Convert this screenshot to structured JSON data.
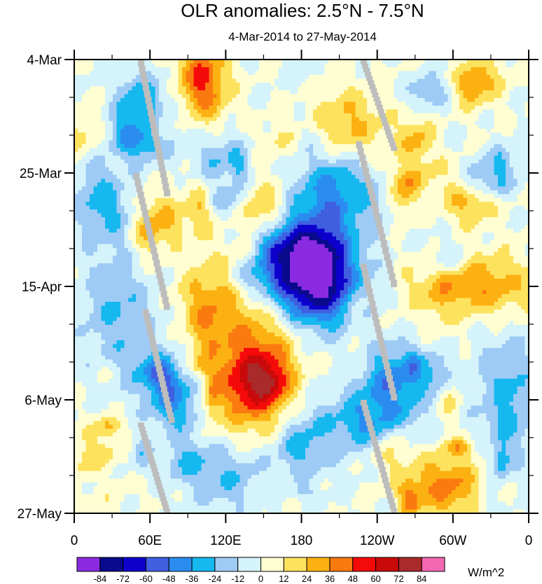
{
  "chart_data": {
    "type": "heatmap",
    "title": "OLR anomalies: 2.5°N - 7.5°N",
    "subtitle": "4-Mar-2014 to 27-May-2014",
    "x_axis": {
      "tick_labels": [
        "0",
        "60E",
        "120E",
        "180",
        "120W",
        "60W",
        "0"
      ],
      "range": [
        "0",
        "0"
      ]
    },
    "y_axis": {
      "tick_labels": [
        "4-Mar",
        "25-Mar",
        "15-Apr",
        "6-May",
        "27-May"
      ],
      "range": [
        "4-Mar-2014",
        "27-May-2014"
      ]
    },
    "colorbar": {
      "unit_label": "W/m^2",
      "levels": [
        -84,
        -72,
        -60,
        -48,
        -36,
        -24,
        -12,
        0,
        12,
        24,
        36,
        48,
        60,
        72,
        84
      ],
      "colors": [
        "#8a2be2",
        "#0a0a8c",
        "#0d00cc",
        "#3f5fe0",
        "#2b8cf0",
        "#16b8f0",
        "#9ecbf5",
        "#d5f3fa",
        "#fffed2",
        "#fde25e",
        "#fcb112",
        "#fa7a10",
        "#f50a0a",
        "#c80a0a",
        "#a82a2a",
        "#f468b3"
      ]
    },
    "missing_color": "#bdbdbd",
    "features": [
      "Enhanced convection (negative anomalies, blue/purple) centred near 150E-170W in early-to-mid April",
      "Suppressed convection (positive anomalies, orange/red) near 120E-140E from mid-April to early May",
      "Eastward-propagating grey bands of missing data crossing the domain"
    ]
  }
}
